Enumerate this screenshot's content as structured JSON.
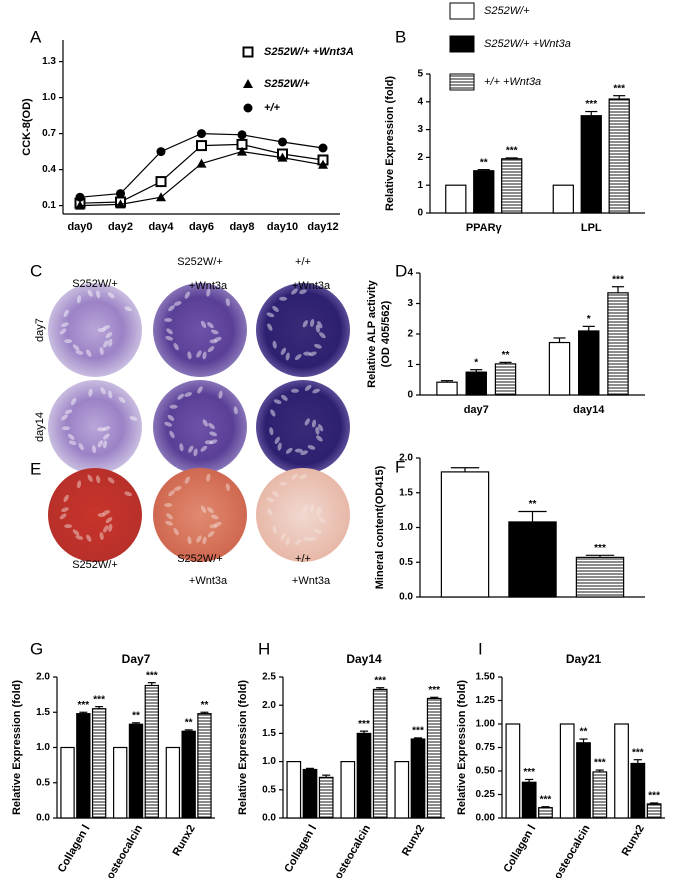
{
  "chart_data": [
    {
      "type": "line",
      "panel": "A",
      "y_label": "CCK-8(OD)",
      "categories": [
        "day0",
        "day2",
        "day4",
        "day6",
        "day8",
        "day10",
        "day12"
      ],
      "ylim": [
        0.03,
        1.48
      ],
      "yticks": [
        0.1,
        0.4,
        0.7,
        {
          "value": 1,
          "label": "1.0"
        },
        1.3
      ],
      "series": [
        {
          "name": "S252W/+ +Wnt3A",
          "color": "#000000",
          "marker": "square-open",
          "values": [
            0.12,
            0.13,
            0.3,
            0.6,
            0.61,
            0.53,
            0.48
          ]
        },
        {
          "name": "S252W/+",
          "color": "#000000",
          "marker": "triangle",
          "values": [
            0.1,
            0.11,
            0.17,
            0.45,
            0.55,
            0.5,
            0.44
          ]
        },
        {
          "name": "+/+",
          "color": "#000000",
          "marker": "circle",
          "values": [
            0.17,
            0.2,
            0.55,
            0.7,
            0.69,
            0.63,
            0.58
          ]
        }
      ]
    },
    {
      "type": "bar",
      "panel": "B",
      "y_label": "Relative Expression (fold)",
      "categories": [
        "PPARγ",
        "LPL"
      ],
      "ylim": [
        0,
        5
      ],
      "yticks": [
        0,
        1,
        2,
        3,
        4,
        5
      ],
      "series": [
        {
          "name": "S252W/+",
          "color": "#ffffff",
          "values": [
            1,
            1
          ]
        },
        {
          "name": "S252W/+ +Wnt3a",
          "color": "#000000",
          "values": [
            1.52,
            3.5
          ],
          "errors": [
            0.04,
            0.15
          ],
          "stars": [
            "**",
            "***"
          ]
        },
        {
          "name": "+/+ +Wnt3a",
          "color": "#ffffff",
          "pattern": "horizontal-lines",
          "values": [
            1.95,
            4.1
          ],
          "errors": [
            0.03,
            0.12
          ],
          "stars": [
            "***",
            "***"
          ]
        }
      ]
    },
    {
      "type": "bar",
      "panel": "D",
      "y_label": [
        "Relative ALP activity",
        "(OD 405/562)"
      ],
      "categories": [
        "day7",
        "day14"
      ],
      "ylim": [
        0,
        4
      ],
      "yticks": [
        0,
        1,
        2,
        3,
        4
      ],
      "series": [
        {
          "color": "#ffffff",
          "values": [
            0.42,
            1.72
          ],
          "errors": [
            0.05,
            0.15
          ]
        },
        {
          "color": "#000000",
          "values": [
            0.75,
            2.1
          ],
          "errors": [
            0.08,
            0.15
          ],
          "stars": [
            "*",
            "*"
          ]
        },
        {
          "color": "#ffffff",
          "pattern": "horizontal-lines",
          "values": [
            1.02,
            3.35
          ],
          "errors": [
            0.05,
            0.2
          ],
          "stars": [
            "**",
            "***"
          ]
        }
      ]
    },
    {
      "type": "bar",
      "panel": "F",
      "y_label": "Mineral content(OD415)",
      "categories": [
        null
      ],
      "ylim": [
        0,
        2
      ],
      "yticks": [
        {
          "value": 0,
          "label": "0.0"
        },
        0.5,
        {
          "value": 1,
          "label": "1.0"
        },
        1.5,
        {
          "value": 2,
          "label": "2.0"
        }
      ],
      "series": [
        {
          "color": "#ffffff",
          "values": [
            1.8
          ],
          "errors": [
            0.06
          ]
        },
        {
          "color": "#000000",
          "values": [
            1.08
          ],
          "errors": [
            0.15
          ],
          "stars": [
            "**"
          ]
        },
        {
          "color": "#ffffff",
          "pattern": "horizontal-lines",
          "values": [
            0.57
          ],
          "errors": [
            0.03
          ],
          "stars": [
            "***"
          ]
        }
      ]
    },
    {
      "type": "bar",
      "panel": "G",
      "title": "Day7",
      "y_label": "Relative Expression (fold)",
      "categories": [
        "Collagen Ⅰ",
        "osteocalcin",
        "Runx2"
      ],
      "ylim": [
        0,
        2
      ],
      "yticks": [
        {
          "value": 0,
          "label": "0.0"
        },
        0.5,
        {
          "value": 1,
          "label": "1.0"
        },
        1.5,
        {
          "value": 2,
          "label": "2.0"
        }
      ],
      "series": [
        {
          "color": "#ffffff",
          "values": [
            1,
            1,
            1
          ]
        },
        {
          "color": "#000000",
          "values": [
            1.48,
            1.33,
            1.23
          ],
          "errors": [
            0.02,
            0.02,
            0.02
          ],
          "stars": [
            "***",
            "**",
            "**"
          ]
        },
        {
          "color": "#ffffff",
          "pattern": "horizontal-lines",
          "values": [
            1.55,
            1.88,
            1.48
          ],
          "errors": [
            0.03,
            0.04,
            0.02
          ],
          "stars": [
            "***",
            "***",
            "**"
          ]
        }
      ]
    },
    {
      "type": "bar",
      "panel": "H",
      "title": "Day14",
      "y_label": "Relative Expression (fold)",
      "categories": [
        "Collagen Ⅰ",
        "osteocalcin",
        "Runx2"
      ],
      "ylim": [
        0,
        2.5
      ],
      "yticks": [
        {
          "value": 0,
          "label": "0.0"
        },
        0.5,
        {
          "value": 1,
          "label": "1.0"
        },
        1.5,
        {
          "value": 2,
          "label": "2.0"
        },
        2.5
      ],
      "series": [
        {
          "color": "#ffffff",
          "values": [
            1,
            1,
            1
          ]
        },
        {
          "color": "#000000",
          "values": [
            0.86,
            1.5,
            1.4
          ],
          "errors": [
            0.02,
            0.04,
            0.02
          ],
          "stars": [
            null,
            "***",
            "***"
          ]
        },
        {
          "color": "#ffffff",
          "pattern": "horizontal-lines",
          "values": [
            0.72,
            2.28,
            2.12
          ],
          "errors": [
            0.04,
            0.03,
            0.02
          ],
          "stars": [
            null,
            "***",
            "***"
          ]
        }
      ]
    },
    {
      "type": "bar",
      "panel": "I",
      "title": "Day21",
      "y_label": "Relative Expression (fold)",
      "categories": [
        "Collagen Ⅰ",
        "osteocalcin",
        "Runx2"
      ],
      "ylim": [
        0,
        1.5
      ],
      "yticks": [
        {
          "value": 0,
          "label": "0.00"
        },
        0.25,
        {
          "value": 0.5,
          "label": "0.50"
        },
        0.75,
        {
          "value": 1,
          "label": "1.00"
        },
        1.25,
        {
          "value": 1.5,
          "label": "1.50"
        }
      ],
      "series": [
        {
          "color": "#ffffff",
          "values": [
            1,
            1,
            1
          ]
        },
        {
          "color": "#000000",
          "values": [
            0.38,
            0.8,
            0.58
          ],
          "errors": [
            0.03,
            0.04,
            0.04
          ],
          "stars": [
            "***",
            "**",
            "***"
          ]
        },
        {
          "color": "#ffffff",
          "pattern": "horizontal-lines",
          "values": [
            0.11,
            0.49,
            0.15
          ],
          "errors": [
            0.01,
            0.02,
            0.01
          ],
          "stars": [
            "***",
            "***",
            "***"
          ]
        }
      ]
    }
  ],
  "image_panels": [
    {
      "panel": "C",
      "column_labels": [
        [
          "S252W/+"
        ],
        [
          "S252W/+",
          "+Wnt3a"
        ],
        [
          "+/+",
          "+Wnt3a"
        ]
      ],
      "row_labels": [
        "day7",
        "day14"
      ]
    },
    {
      "panel": "E",
      "column_labels": [
        [
          "S252W/+"
        ],
        [
          "S252W/+",
          "+Wnt3a"
        ],
        [
          "+/+",
          "+Wnt3a"
        ]
      ]
    }
  ]
}
